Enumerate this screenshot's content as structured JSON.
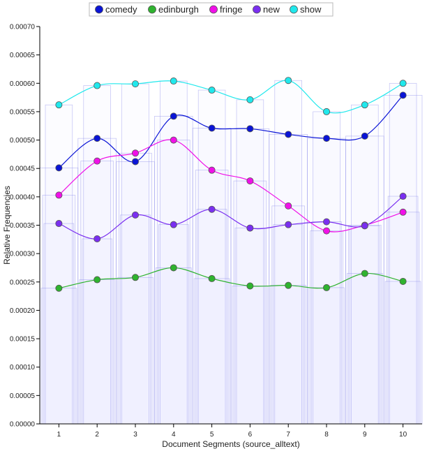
{
  "chart_data": {
    "type": "line",
    "title": "",
    "xlabel": "Document Segments (source_alltext)",
    "ylabel": "Relative Frequencies",
    "categories": [
      "1",
      "2",
      "3",
      "4",
      "5",
      "6",
      "7",
      "8",
      "9",
      "10"
    ],
    "ylim": [
      0,
      0.0007
    ],
    "yticks": [
      "0.00000",
      "0.00005",
      "0.00010",
      "0.00015",
      "0.00020",
      "0.00025",
      "0.00030",
      "0.00035",
      "0.00040",
      "0.00045",
      "0.00050",
      "0.00055",
      "0.00060",
      "0.00065",
      "0.00070"
    ],
    "grid": false,
    "legend_position": "top-center",
    "background_bars": true,
    "series": [
      {
        "name": "comedy",
        "color": "#0a14d6",
        "values": [
          0.000451,
          0.000503,
          0.000462,
          0.000542,
          0.000521,
          0.00052,
          0.00051,
          0.000503,
          0.000507,
          0.000579
        ]
      },
      {
        "name": "edinburgh",
        "color": "#2fb32f",
        "values": [
          0.000239,
          0.000254,
          0.000258,
          0.000275,
          0.000256,
          0.000243,
          0.000244,
          0.00024,
          0.000265,
          0.000251
        ]
      },
      {
        "name": "fringe",
        "color": "#f010e8",
        "values": [
          0.000403,
          0.000463,
          0.000477,
          0.0005,
          0.000447,
          0.000428,
          0.000384,
          0.00034,
          0.00035,
          0.000373
        ]
      },
      {
        "name": "new",
        "color": "#7a2ff0",
        "values": [
          0.000353,
          0.000326,
          0.000368,
          0.000351,
          0.000378,
          0.000345,
          0.000351,
          0.000356,
          0.000349,
          0.000401
        ]
      },
      {
        "name": "show",
        "color": "#20e8ec",
        "values": [
          0.000562,
          0.000596,
          0.000599,
          0.000604,
          0.000588,
          0.000571,
          0.000605,
          0.00055,
          0.000562,
          0.0006
        ]
      }
    ]
  }
}
